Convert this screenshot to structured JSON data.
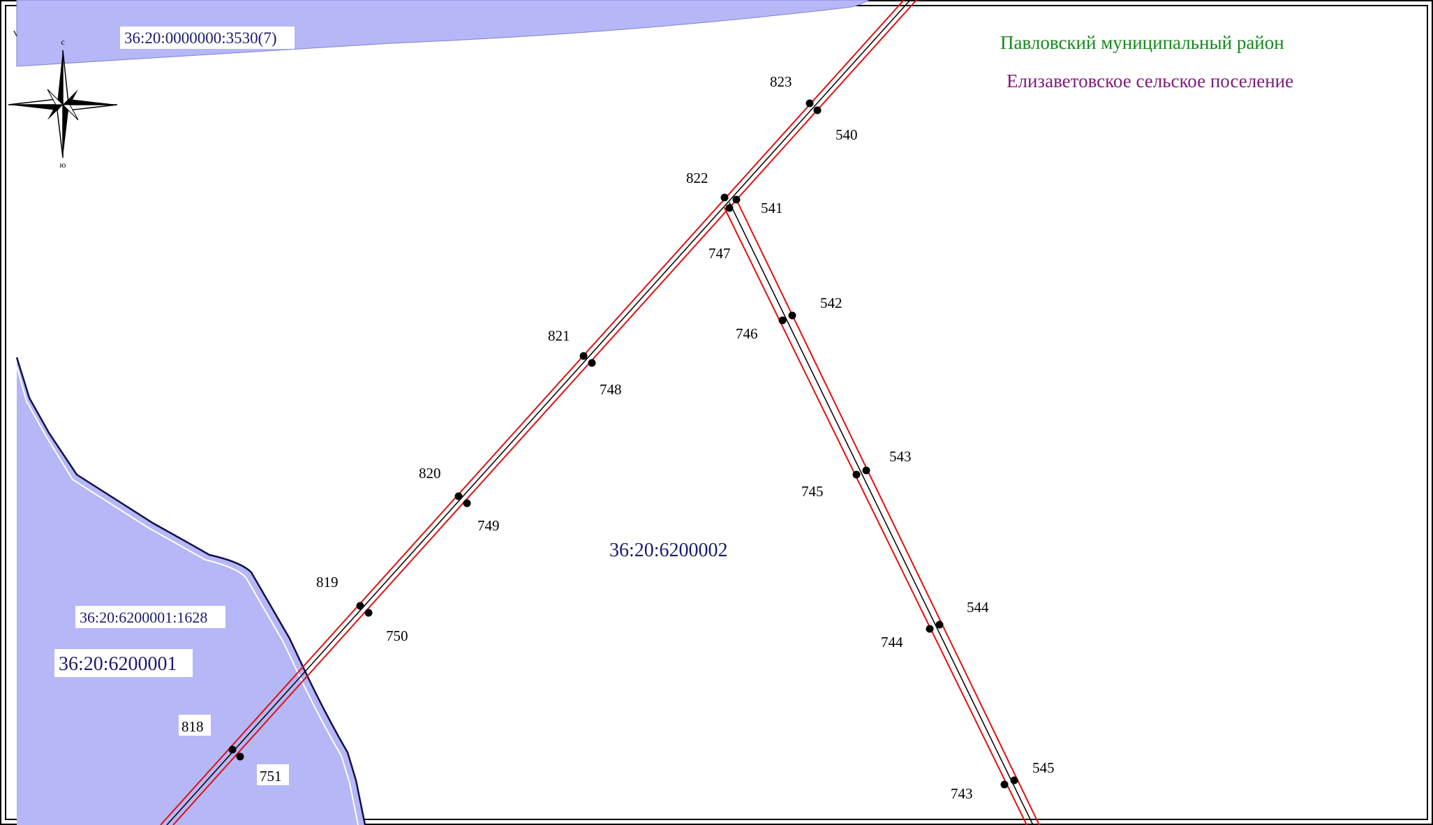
{
  "map": {
    "district_label": "Павловский муниципальный район",
    "settlement_label": "Елизаветовское сельское поселение",
    "compass": {
      "north": "с",
      "south": "ю"
    },
    "parcels": {
      "top_parcel": "36:20:0000000:3530(7)",
      "left_parcel": "36:20:6200001:1628",
      "left_quarter": "36:20:6200001",
      "center_quarter": "36:20:6200002"
    },
    "points": {
      "p823": "823",
      "p540": "540",
      "p822": "822",
      "p541": "541",
      "p747": "747",
      "p542": "542",
      "p746": "746",
      "p821": "821",
      "p748": "748",
      "p543": "543",
      "p745": "745",
      "p820": "820",
      "p749": "749",
      "p819": "819",
      "p750": "750",
      "p544": "544",
      "p744": "744",
      "p818": "818",
      "p751": "751",
      "p545": "545",
      "p743": "743"
    },
    "colors": {
      "parcel_fill": "#b6b7f7",
      "district_text": "#138a1c",
      "settlement_text": "#7d1b7d",
      "quarter_text": "#1b1b70",
      "corridor_red": "#e01010",
      "axis_black": "#000000",
      "boundary": "#10104a"
    }
  }
}
